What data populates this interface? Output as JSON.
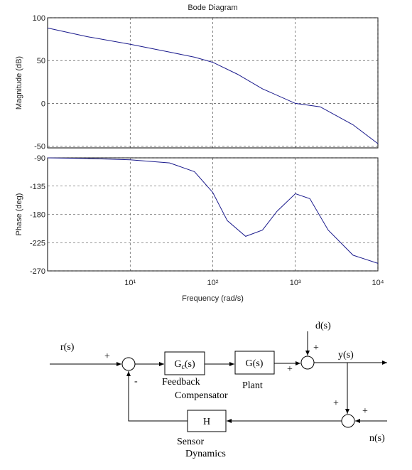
{
  "chart_data": [
    {
      "type": "line",
      "title": "Bode Diagram",
      "ylabel": "Magnitude (dB)",
      "xscale": "log",
      "grid": true,
      "color": "#1a1a8c",
      "xlim": [
        1,
        10000
      ],
      "xticks": [
        10,
        100,
        1000,
        10000
      ],
      "ylim": [
        -52,
        100
      ],
      "yticks": [
        -50,
        0,
        50,
        100
      ],
      "x": [
        1,
        3,
        10,
        30,
        60,
        100,
        200,
        400,
        1000,
        2000,
        5000,
        10000
      ],
      "values": [
        88,
        78,
        69,
        60,
        54,
        48,
        34,
        17,
        0,
        -4,
        -25,
        -47
      ]
    },
    {
      "type": "line",
      "ylabel": "Phase (deg)",
      "xlabel": "Frequency  (rad/s)",
      "xscale": "log",
      "grid": true,
      "color": "#1a1a8c",
      "xlim": [
        1,
        10000
      ],
      "xticks": [
        {
          "value": 10,
          "label": "10¹"
        },
        {
          "value": 100,
          "label": "10²"
        },
        {
          "value": 1000,
          "label": "10³"
        },
        {
          "value": 10000,
          "label": "10⁴"
        }
      ],
      "ylim": [
        -270,
        -90
      ],
      "yticks": [
        -270,
        -225,
        -180,
        -135,
        -90
      ],
      "x": [
        1,
        3,
        10,
        30,
        60,
        100,
        150,
        250,
        400,
        600,
        1000,
        1500,
        2500,
        5000,
        10000
      ],
      "values": [
        -90,
        -91,
        -93,
        -98,
        -112,
        -145,
        -190,
        -215,
        -205,
        -175,
        -147,
        -155,
        -205,
        -245,
        -258
      ]
    }
  ],
  "diagram": {
    "r": "r(s)",
    "plus1": "+",
    "minus1": "-",
    "gc": {
      "label": "G",
      "subscript": "c",
      "suffix": "(s)"
    },
    "gc_caption": [
      "Feedback",
      "Compensator"
    ],
    "g": "G(s)",
    "g_caption": "Plant",
    "d": "d(s)",
    "plus2": "+",
    "plus3": "+",
    "y": "y(s)",
    "plus4": "+",
    "plus5": "+",
    "n": "n(s)",
    "h": "H",
    "h_caption": [
      "Sensor",
      "Dynamics"
    ]
  }
}
